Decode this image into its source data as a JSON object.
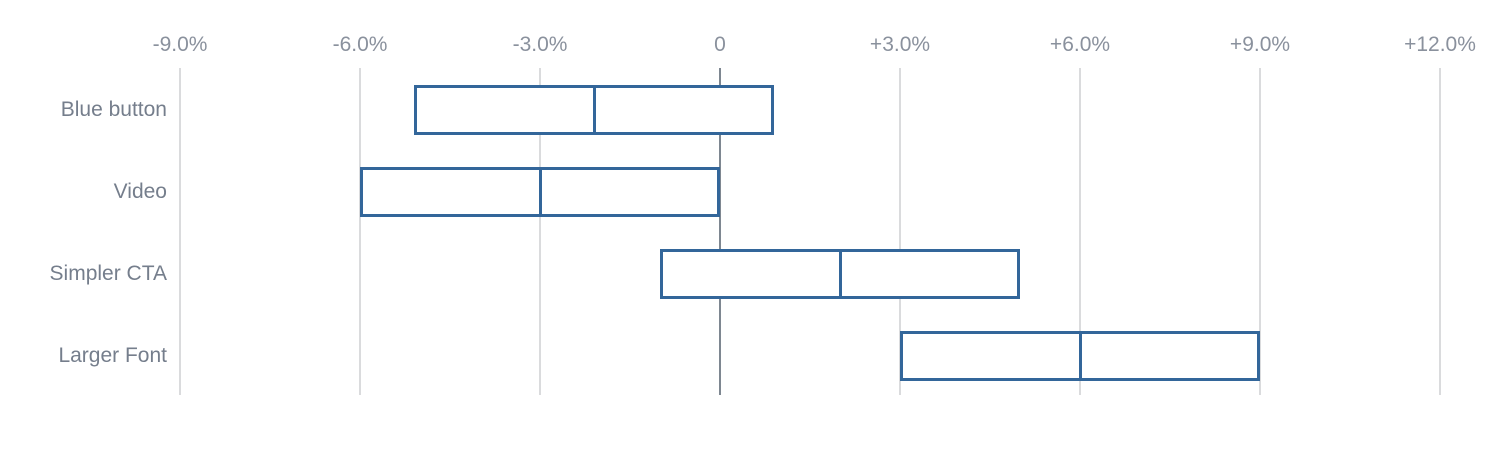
{
  "chart_data": {
    "type": "bar",
    "subtype": "horizontal-floating-range-bars-with-midpoint",
    "title": "",
    "xlabel": "",
    "ylabel": "",
    "categories": [
      "Blue button",
      "Video",
      "Simpler CTA",
      "Larger Font"
    ],
    "series": [
      {
        "name": "range_low",
        "values": [
          -5.1,
          -6.0,
          -1.0,
          3.0
        ]
      },
      {
        "name": "midpoint",
        "values": [
          -2.1,
          -3.0,
          2.0,
          6.0
        ]
      },
      {
        "name": "range_high",
        "values": [
          0.9,
          0.0,
          5.0,
          9.0
        ]
      }
    ],
    "x_ticks": [
      {
        "value": -9,
        "label": "-9.0%"
      },
      {
        "value": -6,
        "label": "-6.0%"
      },
      {
        "value": -3,
        "label": "-3.0%"
      },
      {
        "value": 0,
        "label": "0"
      },
      {
        "value": 3,
        "label": "+3.0%"
      },
      {
        "value": 6,
        "label": "+6.0%"
      },
      {
        "value": 9,
        "label": "+9.0%"
      },
      {
        "value": 12,
        "label": "+12.0%"
      }
    ],
    "xlim": [
      -9,
      12
    ],
    "x_unit": "percent",
    "grid": "vertical-on",
    "legend": "none",
    "tick_label_position": "top",
    "colors": {
      "bar_border": "#33669A",
      "bar_fill": "#FFFFFF",
      "gridline": "#DADBDD",
      "zero_line": "#7E8791",
      "tick_label": "#8A919D",
      "category_label": "#757E8C",
      "background": "#FFFFFF"
    }
  }
}
